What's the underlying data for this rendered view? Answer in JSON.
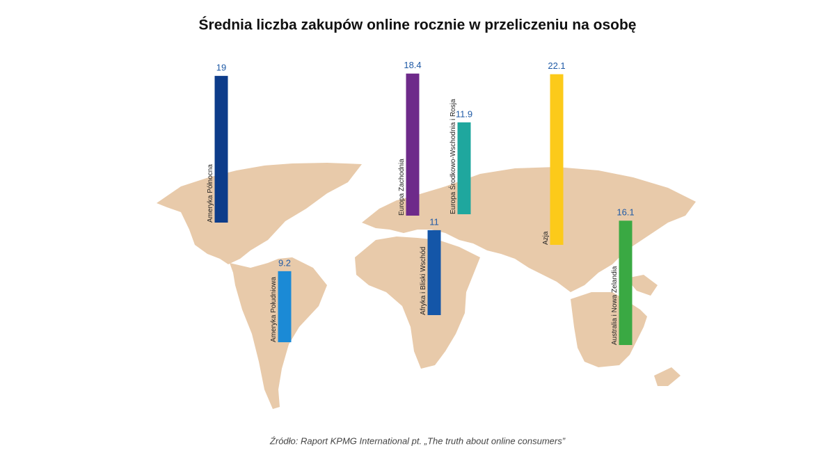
{
  "chart_data": {
    "type": "bar",
    "title": "Średnia liczba zakupów online rocznie w przeliczeniu na osobę",
    "categories": [
      "Ameryka Północna",
      "Ameryka Południowa",
      "Europa Zachodnia",
      "Europa Środkowo-Wschodnia i Rosja",
      "Afryka i Bliski Wschód",
      "Azja",
      "Australia i Nowa Zelandia"
    ],
    "values": [
      19,
      9.2,
      18.4,
      11.9,
      11,
      22.1,
      16.1
    ],
    "colors": [
      "#0d3c8a",
      "#1b8ad6",
      "#6e2a8a",
      "#1fa79e",
      "#1456a8",
      "#fcca1a",
      "#3aa943"
    ],
    "source": "Źródło: Raport KPMG International pt. „The truth about online consumers”"
  }
}
